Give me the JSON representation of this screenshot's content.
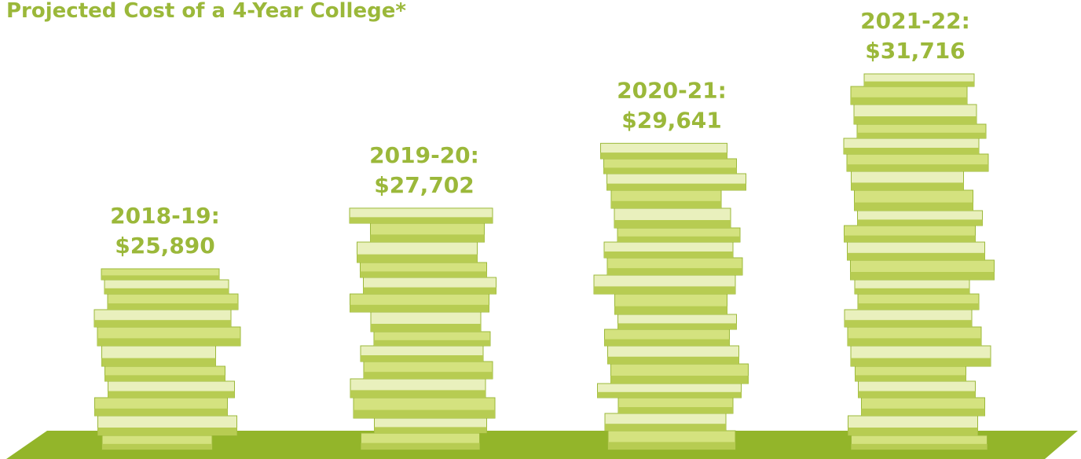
{
  "chart_data": {
    "type": "bar",
    "title": "Projected Cost of a 4-Year College*",
    "categories": [
      "2018-19:",
      "2019-20:",
      "2020-21:",
      "2021-22:"
    ],
    "values": [
      25890,
      27702,
      29641,
      31716
    ],
    "value_labels": [
      "$25,890",
      "$27,702",
      "$29,641",
      "$31,716"
    ],
    "color": "#9bb83a"
  }
}
